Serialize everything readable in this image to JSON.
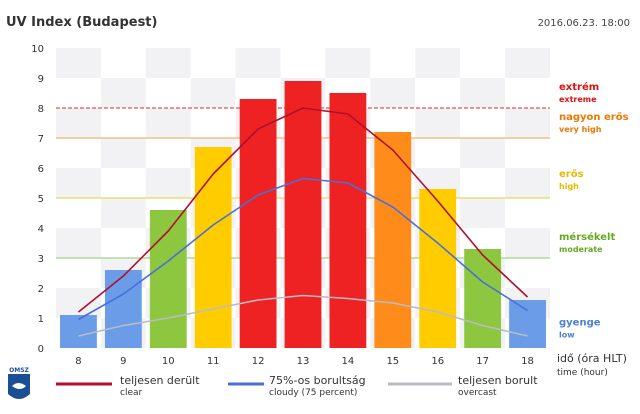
{
  "header": {
    "title": "UV Index (Budapest)",
    "datetime": "2016.06.23. 18:00"
  },
  "logo": {
    "text": "OMSZ"
  },
  "chart_data": {
    "type": "bar",
    "title": "UV Index (Budapest)",
    "categories": [
      "8",
      "9",
      "10",
      "11",
      "12",
      "13",
      "14",
      "15",
      "16",
      "17",
      "18"
    ],
    "ylim": [
      0,
      10
    ],
    "yticks": [
      "0",
      "1",
      "2",
      "3",
      "4",
      "5",
      "6",
      "7",
      "8",
      "9",
      "10"
    ],
    "grid": "checkerboard",
    "bars": {
      "values": [
        1.1,
        2.6,
        4.6,
        6.7,
        8.3,
        8.9,
        8.5,
        7.2,
        5.3,
        3.3,
        1.6
      ],
      "colors": [
        "#6b9ce8",
        "#6b9ce8",
        "#8dc63f",
        "#ffcc00",
        "#ee2222",
        "#ee2222",
        "#ee2222",
        "#ff8c1a",
        "#ffcc00",
        "#8dc63f",
        "#6b9ce8"
      ]
    },
    "series": [
      {
        "name": "teljesen derült",
        "name_en": "clear",
        "color": "#b0102c",
        "values": [
          1.2,
          2.4,
          3.9,
          5.8,
          7.3,
          8.0,
          7.8,
          6.6,
          4.9,
          3.1,
          1.7
        ]
      },
      {
        "name": "75%-os borultság",
        "name_en": "cloudy (75 percent)",
        "color": "#4a6fd8",
        "values": [
          0.95,
          1.8,
          2.9,
          4.1,
          5.1,
          5.65,
          5.5,
          4.7,
          3.5,
          2.2,
          1.25
        ]
      },
      {
        "name": "teljesen borult",
        "name_en": "overcast",
        "color": "#b8bcc6",
        "values": [
          0.4,
          0.75,
          1.0,
          1.3,
          1.6,
          1.75,
          1.65,
          1.5,
          1.2,
          0.75,
          0.4
        ]
      }
    ],
    "thresholds": [
      {
        "value": 8,
        "color": "#cc3333",
        "style": "dashed",
        "label_hu": "extrém",
        "label_en": "extreme",
        "label_value": 8.6,
        "label_color": "#dd1111"
      },
      {
        "value": 7,
        "color": "#f0a050",
        "style": "solid",
        "label_hu": "nagyon erős",
        "label_en": "very high",
        "label_value": 7.6,
        "label_color": "#ee7700"
      },
      {
        "value": 5,
        "color": "#e8cc40",
        "style": "solid",
        "label_hu": "erős",
        "label_en": "high",
        "label_value": 5.7,
        "label_color": "#e8b800"
      },
      {
        "value": 3,
        "color": "#88cc66",
        "style": "solid",
        "label_hu": "mérsékelt",
        "label_en": "moderate",
        "label_value": 3.6,
        "label_color": "#66aa22"
      },
      {
        "value": 1.05,
        "color": "none",
        "style": "none",
        "label_hu": "gyenge",
        "label_en": "low",
        "label_value": 0.75,
        "label_color": "#4a7fd8"
      }
    ],
    "xlabel": "idő (óra HLT)",
    "xlabel_en": "time (hour)"
  }
}
